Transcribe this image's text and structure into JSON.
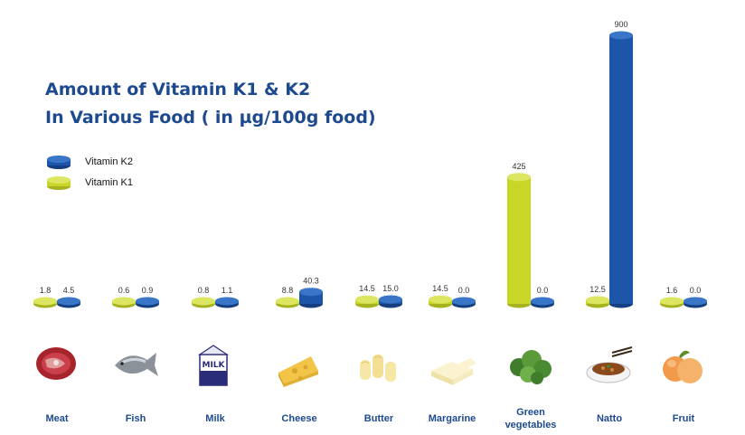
{
  "chart_data": {
    "type": "bar",
    "title": "Amount of Vitamin K1 & K2",
    "subtitle": "In Various Food ( in µg/100g food)",
    "categories": [
      "Meat",
      "Fish",
      "Milk",
      "Cheese",
      "Butter",
      "Margarine",
      "Green vegetables",
      "Natto",
      "Fruit"
    ],
    "series": [
      {
        "name": "Vitamin K1",
        "color": "#c8d628",
        "values": [
          1.8,
          0.6,
          0.8,
          8.8,
          14.5,
          14.5,
          425,
          12.5,
          1.6
        ],
        "labels": [
          "1.8",
          "0.6",
          "0.8",
          "8.8",
          "14.5",
          "14.5",
          "425",
          "12.5",
          "1.6"
        ]
      },
      {
        "name": "Vitamin K2",
        "color": "#1d56a8",
        "values": [
          4.5,
          0.9,
          1.1,
          40.3,
          15.0,
          0.0,
          0.0,
          900,
          0.0
        ],
        "labels": [
          "4.5",
          "0.9",
          "1.1",
          "40.3",
          "15.0",
          "0.0",
          "0.0",
          "900",
          "0.0"
        ]
      }
    ],
    "legend": {
      "placement": "top-left",
      "order": [
        "Vitamin K2",
        "Vitamin K1"
      ]
    },
    "grid": false,
    "ylim": [
      0,
      900
    ],
    "category_icons": [
      "meat-icon",
      "fish-icon",
      "milk-carton-icon",
      "cheese-icon",
      "butter-icon",
      "margarine-icon",
      "green-vegetables-icon",
      "natto-icon",
      "fruit-icon"
    ],
    "category_icon_text": {
      "milk": "MILK"
    }
  }
}
